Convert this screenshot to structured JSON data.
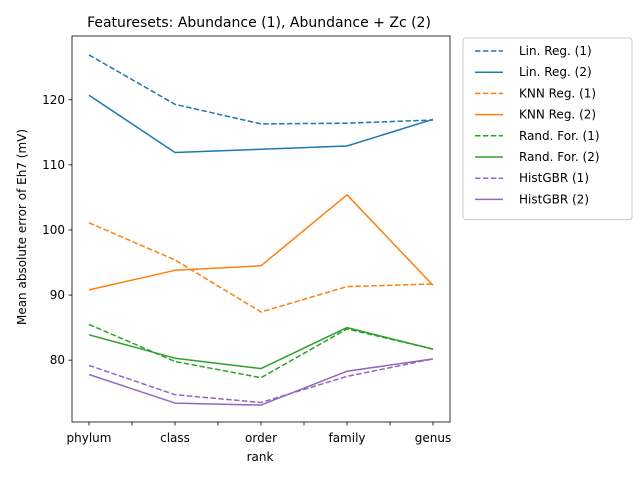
{
  "chart_data": {
    "type": "line",
    "title": "Featuresets: Abundance (1), Abundance + Zc (2)",
    "xlabel": "rank",
    "ylabel": "Mean absolute error of Eh7 (mV)",
    "categories": [
      "phylum",
      "class",
      "order",
      "family",
      "genus"
    ],
    "yticks": [
      80,
      90,
      100,
      110,
      120
    ],
    "ylim": [
      70.5,
      129.8
    ],
    "legend_position": "outside-right",
    "grid": false,
    "series": [
      {
        "name": "Lin. Reg. (1)",
        "color": "#1f77b4",
        "dashed": true,
        "values": [
          126.9,
          119.3,
          116.3,
          116.4,
          116.9
        ]
      },
      {
        "name": "Lin. Reg. (2)",
        "color": "#1f77b4",
        "dashed": false,
        "values": [
          120.7,
          111.9,
          112.4,
          112.9,
          117.0
        ]
      },
      {
        "name": "KNN Reg. (1)",
        "color": "#ff7f0e",
        "dashed": true,
        "values": [
          101.1,
          95.4,
          87.4,
          91.3,
          91.7
        ]
      },
      {
        "name": "KNN Reg. (2)",
        "color": "#ff7f0e",
        "dashed": false,
        "values": [
          90.8,
          93.8,
          94.5,
          105.4,
          91.5
        ]
      },
      {
        "name": "Rand. For. (1)",
        "color": "#2ca02c",
        "dashed": true,
        "values": [
          85.5,
          79.8,
          77.3,
          84.8,
          81.7
        ]
      },
      {
        "name": "Rand. For. (2)",
        "color": "#2ca02c",
        "dashed": false,
        "values": [
          83.9,
          80.3,
          78.7,
          85.0,
          81.7
        ]
      },
      {
        "name": "HistGBR (1)",
        "color": "#9467bd",
        "dashed": true,
        "values": [
          79.2,
          74.7,
          73.5,
          77.5,
          80.2
        ]
      },
      {
        "name": "HistGBR (2)",
        "color": "#9467bd",
        "dashed": false,
        "values": [
          77.8,
          73.4,
          73.1,
          78.3,
          80.2
        ]
      }
    ]
  }
}
